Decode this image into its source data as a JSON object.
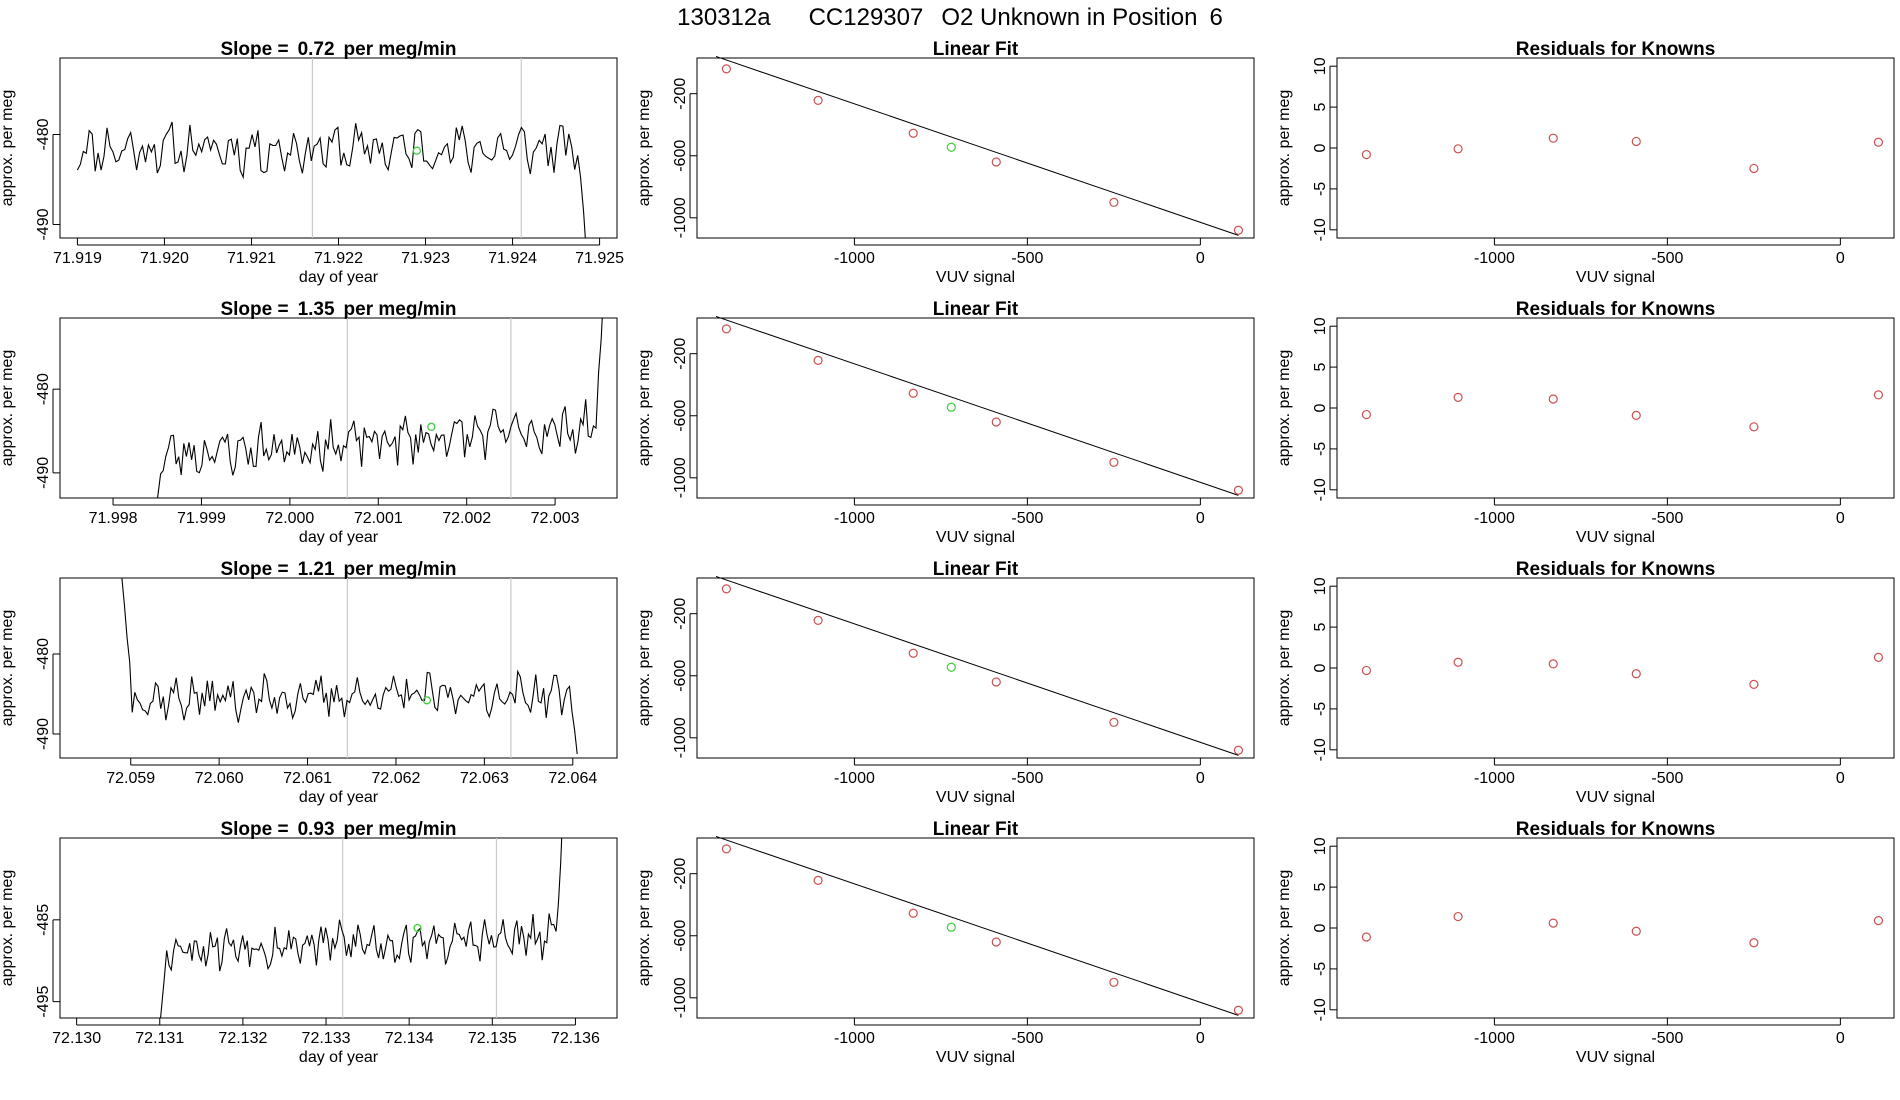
{
  "figure_title": {
    "run": "130312a",
    "tank": "CC129307",
    "desc": "O2 Unknown in Position",
    "position": "6"
  },
  "colors": {
    "line": "#000000",
    "known": "#cd4f4f",
    "unknown": "#3ecf3e",
    "vline": "#c9c9c9"
  },
  "chart_data": [
    {
      "type": "line",
      "panel": "row1-time",
      "title_prefix": "Slope =",
      "slope": "0.72",
      "title_suffix": "per meg/min",
      "xlabel": "day of year",
      "ylabel": "approx. per meg",
      "xlim": [
        71.9188,
        71.9252
      ],
      "ylim": [
        -491.5,
        -471.5
      ],
      "xticks": [
        "71.919",
        "71.920",
        "71.921",
        "71.922",
        "71.923",
        "71.924",
        "71.925"
      ],
      "yticks": [
        "-480",
        "-490"
      ],
      "vlines": [
        71.9217,
        71.9241
      ],
      "highlight": {
        "x": 71.9229,
        "y": -481.8
      },
      "series": {
        "start": 71.919,
        "end": 71.92485,
        "base": -481.6,
        "amp": 2.2,
        "trend": 0,
        "seed": 11,
        "lead": [],
        "tail": [
          -484.8,
          -488.6,
          -493.5
        ]
      }
    },
    {
      "type": "scatter",
      "panel": "row1-fit",
      "title": "Linear Fit",
      "xlabel": "VUV signal",
      "ylabel": "approx. per meg",
      "xlim": [
        -1455,
        155
      ],
      "ylim": [
        -1130,
        30
      ],
      "xticks": [
        "-1000",
        "-500",
        "0"
      ],
      "yticks": [
        "-200",
        "-600",
        "-1000"
      ],
      "line": [
        [
          -1400,
          40
        ],
        [
          110,
          -1113
        ]
      ],
      "known_x": [
        -1370,
        -1105,
        -830,
        -590,
        -250,
        110
      ],
      "known_y": [
        -40,
        -243,
        -455,
        -640,
        -900,
        -1080
      ],
      "unknown_x": [
        -720
      ],
      "unknown_y": [
        -545
      ]
    },
    {
      "type": "scatter",
      "panel": "row1-residuals",
      "title": "Residuals for Knowns",
      "xlabel": "VUV signal",
      "ylabel": "approx. per meg",
      "xlim": [
        -1455,
        155
      ],
      "ylim": [
        -11,
        11
      ],
      "xticks": [
        "-1000",
        "-500",
        "0"
      ],
      "yticks": [
        "10",
        "5",
        "0",
        "-5",
        "-10"
      ],
      "x": [
        -1370,
        -1105,
        -830,
        -590,
        -250,
        110
      ],
      "y": [
        -0.8,
        -0.1,
        1.2,
        0.8,
        -2.5,
        0.7
      ]
    },
    {
      "type": "line",
      "panel": "row2-time",
      "title_prefix": "Slope =",
      "slope": "1.35",
      "title_suffix": "per meg/min",
      "xlabel": "day of year",
      "ylabel": "approx. per meg",
      "xlim": [
        71.9974,
        72.0037
      ],
      "ylim": [
        -493,
        -471.5
      ],
      "xticks": [
        "71.998",
        "71.999",
        "72.000",
        "72.001",
        "72.002",
        "72.003"
      ],
      "yticks": [
        "-480",
        "-490"
      ],
      "vlines": [
        72.00065,
        72.0025
      ],
      "highlight": {
        "x": 72.0016,
        "y": -484.5
      },
      "series": {
        "start": 71.99848,
        "end": 72.00355,
        "base": -486.2,
        "amp": 2.3,
        "trend": 3.4,
        "seed": 23,
        "lead": [
          -495,
          -492.5
        ],
        "tail": [
          -478,
          -474,
          -468
        ]
      }
    },
    {
      "type": "scatter",
      "panel": "row2-fit",
      "title": "Linear Fit",
      "xlabel": "VUV signal",
      "ylabel": "approx. per meg",
      "xlim": [
        -1455,
        155
      ],
      "ylim": [
        -1130,
        30
      ],
      "xticks": [
        "-1000",
        "-500",
        "0"
      ],
      "yticks": [
        "-200",
        "-600",
        "-1000"
      ],
      "line": [
        [
          -1400,
          40
        ],
        [
          110,
          -1113
        ]
      ],
      "known_x": [
        -1370,
        -1105,
        -830,
        -590,
        -250,
        110
      ],
      "known_y": [
        -40,
        -243,
        -455,
        -640,
        -900,
        -1080
      ],
      "unknown_x": [
        -720
      ],
      "unknown_y": [
        -545
      ]
    },
    {
      "type": "scatter",
      "panel": "row2-residuals",
      "title": "Residuals for Knowns",
      "xlabel": "VUV signal",
      "ylabel": "approx. per meg",
      "xlim": [
        -1455,
        155
      ],
      "ylim": [
        -11,
        11
      ],
      "xticks": [
        "-1000",
        "-500",
        "0"
      ],
      "yticks": [
        "10",
        "5",
        "0",
        "-5",
        "-10"
      ],
      "x": [
        -1370,
        -1105,
        -830,
        -590,
        -250,
        110
      ],
      "y": [
        -0.8,
        1.3,
        1.1,
        -0.9,
        -2.3,
        1.6
      ]
    },
    {
      "type": "line",
      "panel": "row3-time",
      "title_prefix": "Slope =",
      "slope": "1.21",
      "title_suffix": "per meg/min",
      "xlabel": "day of year",
      "ylabel": "approx. per meg",
      "xlim": [
        72.0582,
        72.0645
      ],
      "ylim": [
        -493,
        -470.5
      ],
      "xticks": [
        "72.059",
        "72.060",
        "72.061",
        "72.062",
        "72.063",
        "72.064"
      ],
      "yticks": [
        "-480",
        "-490"
      ],
      "vlines": [
        72.06145,
        72.0633
      ],
      "highlight": {
        "x": 72.06235,
        "y": -485.8
      },
      "series": {
        "start": 72.0589,
        "end": 72.06405,
        "base": -485.3,
        "amp": 2.1,
        "trend": 0.5,
        "seed": 37,
        "lead": [
          -470.5,
          -474,
          -478,
          -481
        ],
        "tail": [
          -487.2,
          -489.5,
          -492.5
        ]
      }
    },
    {
      "type": "scatter",
      "panel": "row3-fit",
      "title": "Linear Fit",
      "xlabel": "VUV signal",
      "ylabel": "approx. per meg",
      "xlim": [
        -1455,
        155
      ],
      "ylim": [
        -1130,
        30
      ],
      "xticks": [
        "-1000",
        "-500",
        "0"
      ],
      "yticks": [
        "-200",
        "-600",
        "-1000"
      ],
      "line": [
        [
          -1400,
          40
        ],
        [
          110,
          -1113
        ]
      ],
      "known_x": [
        -1370,
        -1105,
        -830,
        -590,
        -250,
        110
      ],
      "known_y": [
        -40,
        -243,
        -455,
        -640,
        -900,
        -1080
      ],
      "unknown_x": [
        -720
      ],
      "unknown_y": [
        -545
      ]
    },
    {
      "type": "scatter",
      "panel": "row3-residuals",
      "title": "Residuals for Knowns",
      "xlabel": "VUV signal",
      "ylabel": "approx. per meg",
      "xlim": [
        -1455,
        155
      ],
      "ylim": [
        -11,
        11
      ],
      "xticks": [
        "-1000",
        "-500",
        "0"
      ],
      "yticks": [
        "10",
        "5",
        "0",
        "-5",
        "-10"
      ],
      "x": [
        -1370,
        -1105,
        -830,
        -590,
        -250,
        110
      ],
      "y": [
        -0.3,
        0.7,
        0.5,
        -0.7,
        -2.0,
        1.3
      ]
    },
    {
      "type": "line",
      "panel": "row4-time",
      "title_prefix": "Slope =",
      "slope": "0.93",
      "title_suffix": "per meg/min",
      "xlabel": "day of year",
      "ylabel": "approx. per meg",
      "xlim": [
        72.1298,
        72.1365
      ],
      "ylim": [
        -497,
        -475
      ],
      "xticks": [
        "72.130",
        "72.131",
        "72.132",
        "72.133",
        "72.134",
        "72.135",
        "72.136"
      ],
      "yticks": [
        "-485",
        "-495"
      ],
      "vlines": [
        72.1332,
        72.13505
      ],
      "highlight": {
        "x": 72.1341,
        "y": -486
      },
      "series": {
        "start": 72.131,
        "end": 72.13585,
        "base": -487.8,
        "amp": 2.2,
        "trend": 1.0,
        "seed": 53,
        "lead": [
          -498,
          -495,
          -492
        ],
        "tail": [
          -483,
          -478,
          -471
        ]
      }
    },
    {
      "type": "scatter",
      "panel": "row4-fit",
      "title": "Linear Fit",
      "xlabel": "VUV signal",
      "ylabel": "approx. per meg",
      "xlim": [
        -1455,
        155
      ],
      "ylim": [
        -1130,
        30
      ],
      "xticks": [
        "-1000",
        "-500",
        "0"
      ],
      "yticks": [
        "-200",
        "-600",
        "-1000"
      ],
      "line": [
        [
          -1400,
          40
        ],
        [
          110,
          -1113
        ]
      ],
      "known_x": [
        -1370,
        -1105,
        -830,
        -590,
        -250,
        110
      ],
      "known_y": [
        -40,
        -243,
        -455,
        -640,
        -900,
        -1080
      ],
      "unknown_x": [
        -720
      ],
      "unknown_y": [
        -545
      ]
    },
    {
      "type": "scatter",
      "panel": "row4-residuals",
      "title": "Residuals for Knowns",
      "xlabel": "VUV signal",
      "ylabel": "approx. per meg",
      "xlim": [
        -1455,
        155
      ],
      "ylim": [
        -11,
        11
      ],
      "xticks": [
        "-1000",
        "-500",
        "0"
      ],
      "yticks": [
        "10",
        "5",
        "0",
        "-5",
        "-10"
      ],
      "x": [
        -1370,
        -1105,
        -830,
        -590,
        -250,
        110
      ],
      "y": [
        -1.1,
        1.4,
        0.6,
        -0.4,
        -1.8,
        0.9
      ]
    }
  ]
}
